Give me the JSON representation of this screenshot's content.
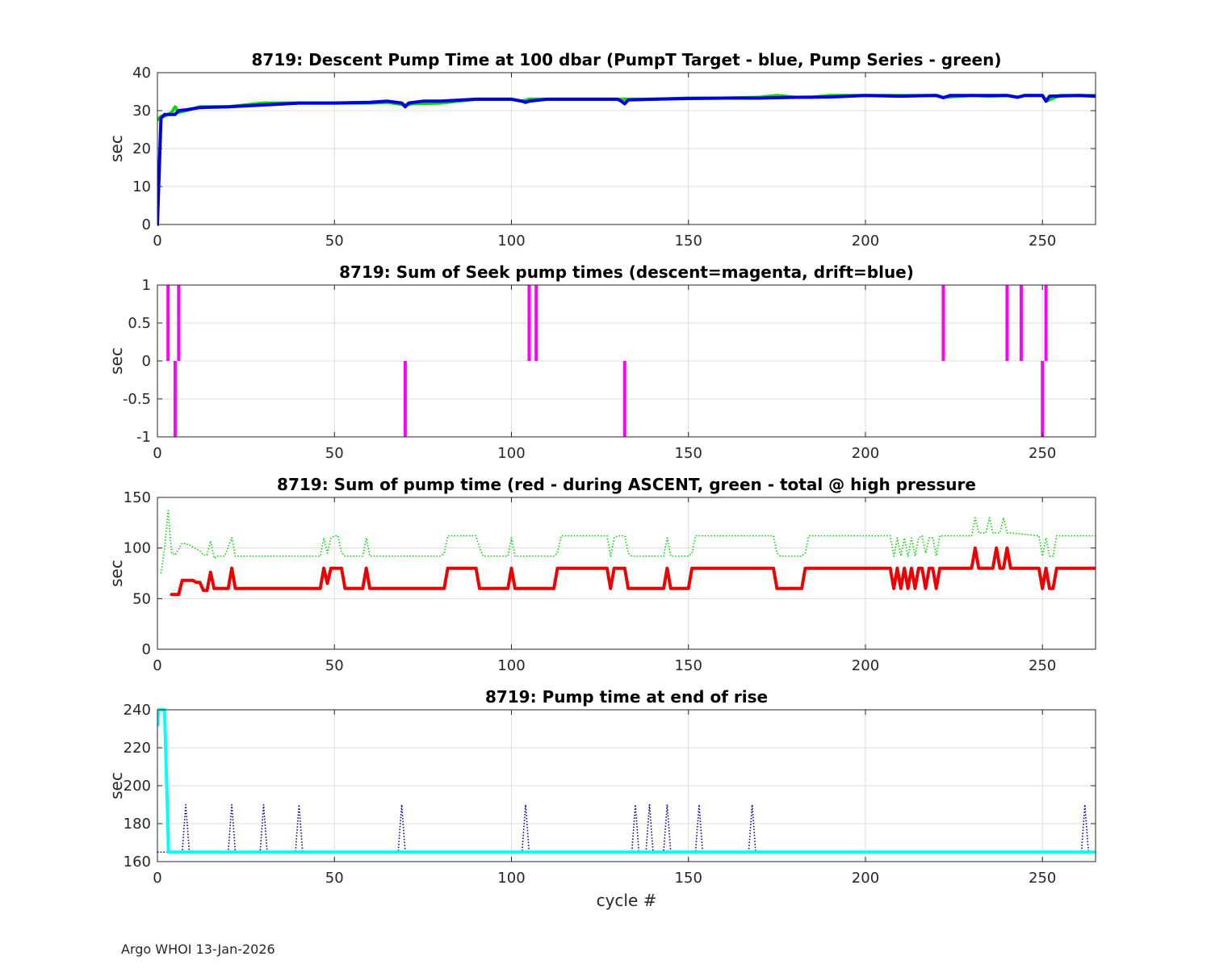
{
  "chart_data": [
    {
      "type": "line",
      "title": "8719: Descent Pump Time at 100 dbar (PumpT Target - blue, Pump Series - green)",
      "xlabel": "",
      "ylabel": "sec",
      "xlim": [
        0,
        265
      ],
      "ylim": [
        0,
        40
      ],
      "xticks": [
        "0",
        "50",
        "100",
        "150",
        "200",
        "250"
      ],
      "yticks": [
        "0",
        "10",
        "20",
        "30",
        "40"
      ],
      "grid": true,
      "series": [
        {
          "color": "#00dd00",
          "width": 4,
          "style": "solid",
          "x": [
            0,
            1,
            2,
            3,
            4,
            5,
            6,
            8,
            10,
            12,
            20,
            30,
            40,
            50,
            60,
            65,
            70,
            72,
            80,
            90,
            100,
            103,
            105,
            110,
            120,
            130,
            140,
            150,
            160,
            170,
            175,
            180,
            185,
            190,
            200,
            210,
            220,
            222,
            230,
            235,
            240,
            243,
            245,
            250,
            251,
            255,
            260,
            265
          ],
          "y": [
            27.5,
            28.5,
            28.5,
            29,
            29.5,
            31,
            29.5,
            30,
            30.5,
            31,
            31,
            32,
            32,
            32,
            32,
            32.2,
            31.5,
            31.8,
            32,
            33,
            33,
            32.5,
            33,
            33,
            33,
            33,
            33,
            33.3,
            33.3,
            33.5,
            34,
            33.5,
            33.5,
            34,
            34,
            34,
            34,
            33.5,
            34,
            33.8,
            34,
            33.5,
            34,
            34,
            32.5,
            34,
            34,
            34
          ]
        },
        {
          "color": "#0000dd",
          "width": 4,
          "style": "solid",
          "x": [
            0,
            1,
            2,
            3,
            5,
            6,
            8,
            12,
            20,
            30,
            40,
            50,
            60,
            65,
            69,
            70,
            71,
            75,
            80,
            90,
            100,
            103,
            104,
            105,
            110,
            120,
            130,
            131,
            132,
            133,
            140,
            150,
            160,
            170,
            180,
            190,
            200,
            210,
            220,
            222,
            224,
            230,
            240,
            243,
            245,
            250,
            251,
            252,
            260,
            265
          ],
          "y": [
            0,
            28,
            29,
            29,
            29,
            30,
            30.2,
            30.8,
            31,
            31.5,
            32,
            32,
            32.2,
            32.5,
            32,
            31,
            32,
            32.5,
            32.5,
            33,
            33,
            32.5,
            32.2,
            32.5,
            33,
            33,
            33,
            32.5,
            31.8,
            32.8,
            33,
            33.2,
            33.3,
            33.3,
            33.5,
            33.6,
            34,
            33.8,
            34,
            33.4,
            34,
            34,
            34,
            33.5,
            34,
            34,
            32.5,
            33.8,
            34,
            33.8
          ]
        }
      ]
    },
    {
      "type": "bar",
      "title": "8719: Sum of Seek pump times (descent=magenta, drift=blue)",
      "xlabel": "",
      "ylabel": "sec",
      "xlim": [
        0,
        265
      ],
      "ylim": [
        -1,
        1
      ],
      "xticks": [
        "0",
        "50",
        "100",
        "150",
        "200",
        "250"
      ],
      "yticks": [
        "-1",
        "-0.5",
        "0",
        "0.5",
        "1"
      ],
      "grid": true,
      "baseline": 0,
      "series": [
        {
          "color": "#ff00ff",
          "width": 4,
          "x": [
            3,
            5,
            6,
            70,
            105,
            107,
            132,
            222,
            240,
            244,
            250,
            251
          ],
          "y": [
            1,
            -1,
            1,
            -1,
            1,
            1,
            -1,
            1,
            1,
            1,
            -1,
            1
          ]
        }
      ]
    },
    {
      "type": "line",
      "title": "8719: Sum of pump time (red - during ASCENT, green - total @ high pressure",
      "xlabel": "",
      "ylabel": "sec",
      "xlim": [
        0,
        265
      ],
      "ylim": [
        0,
        150
      ],
      "xticks": [
        "0",
        "50",
        "100",
        "150",
        "200",
        "250"
      ],
      "yticks": [
        "0",
        "50",
        "100",
        "150"
      ],
      "grid": true,
      "series": [
        {
          "color": "#00dd00",
          "width": 1.6,
          "style": "dotted",
          "x": [
            1,
            2,
            3,
            4,
            5,
            7,
            9,
            11,
            12,
            13,
            14,
            15,
            16,
            17,
            19,
            21,
            22,
            23,
            30,
            40,
            46,
            47,
            48,
            49,
            50,
            51,
            52,
            53,
            58,
            59,
            60,
            61,
            70,
            80,
            81,
            82,
            90,
            91,
            92,
            99,
            100,
            101,
            102,
            112,
            113,
            114,
            127,
            128,
            129,
            130,
            132,
            133,
            134,
            143,
            144,
            145,
            150,
            151,
            152,
            160,
            170,
            174,
            175,
            176,
            182,
            183,
            184,
            200,
            207,
            208,
            209,
            210,
            211,
            212,
            213,
            214,
            215,
            216,
            217,
            218,
            219,
            220,
            221,
            230,
            231,
            232,
            234,
            235,
            236,
            238,
            239,
            240,
            241,
            249,
            250,
            251,
            252,
            253,
            254,
            255,
            265
          ],
          "y": [
            75,
            100,
            137,
            95,
            93,
            105,
            103,
            99,
            97,
            93,
            93,
            107,
            90,
            92,
            92,
            110,
            92,
            92,
            92,
            92,
            92,
            110,
            95,
            110,
            112,
            112,
            95,
            92,
            92,
            110,
            92,
            92,
            92,
            92,
            95,
            112,
            112,
            100,
            92,
            92,
            110,
            92,
            92,
            92,
            95,
            112,
            112,
            92,
            110,
            112,
            112,
            95,
            92,
            92,
            110,
            92,
            92,
            95,
            112,
            112,
            112,
            112,
            95,
            92,
            92,
            95,
            112,
            112,
            112,
            92,
            110,
            92,
            110,
            92,
            110,
            92,
            110,
            112,
            95,
            110,
            110,
            92,
            112,
            112,
            130,
            115,
            115,
            130,
            115,
            115,
            130,
            115,
            115,
            112,
            92,
            110,
            92,
            92,
            112,
            112,
            112
          ]
        },
        {
          "color": "#ee0000",
          "width": 4,
          "style": "solid",
          "x": [
            4,
            6,
            7,
            10,
            11,
            12,
            13,
            14,
            15,
            16,
            17,
            20,
            21,
            22,
            30,
            46,
            47,
            48,
            49,
            52,
            53,
            58,
            59,
            60,
            81,
            82,
            90,
            91,
            99,
            100,
            101,
            112,
            113,
            127,
            128,
            129,
            132,
            133,
            143,
            144,
            145,
            150,
            151,
            174,
            175,
            182,
            183,
            207,
            208,
            209,
            210,
            211,
            212,
            213,
            214,
            215,
            216,
            217,
            218,
            219,
            220,
            221,
            230,
            231,
            232,
            236,
            237,
            238,
            239,
            240,
            241,
            249,
            250,
            251,
            252,
            253,
            254,
            265
          ],
          "y": [
            54,
            54,
            68,
            68,
            66,
            66,
            58,
            58,
            76,
            60,
            60,
            60,
            80,
            60,
            60,
            60,
            80,
            65,
            80,
            80,
            60,
            60,
            80,
            60,
            60,
            80,
            80,
            60,
            60,
            80,
            60,
            60,
            80,
            80,
            60,
            80,
            80,
            60,
            60,
            80,
            60,
            60,
            80,
            80,
            60,
            60,
            80,
            80,
            60,
            80,
            60,
            80,
            60,
            80,
            60,
            80,
            80,
            60,
            80,
            80,
            60,
            80,
            80,
            100,
            80,
            80,
            100,
            80,
            80,
            100,
            80,
            80,
            60,
            80,
            60,
            60,
            80,
            80
          ]
        }
      ]
    },
    {
      "type": "line",
      "title": "8719: Pump time at end of rise",
      "xlabel": "cycle #",
      "ylabel": "sec",
      "xlim": [
        0,
        265
      ],
      "ylim": [
        160,
        240
      ],
      "xticks": [
        "0",
        "50",
        "100",
        "150",
        "200",
        "250"
      ],
      "yticks": [
        "160",
        "180",
        "200",
        "220",
        "240"
      ],
      "grid": true,
      "series": [
        {
          "color": "#000099",
          "width": 1.6,
          "style": "dotted",
          "x": [
            0,
            7,
            8,
            9,
            20,
            21,
            22,
            29,
            30,
            31,
            39,
            40,
            41,
            68,
            69,
            70,
            103,
            104,
            105,
            134,
            135,
            136,
            138,
            139,
            140,
            143,
            144,
            145,
            152,
            153,
            154,
            167,
            168,
            169,
            261,
            262,
            263,
            265
          ],
          "y": [
            165,
            165,
            190,
            165,
            165,
            190,
            165,
            165,
            190,
            165,
            165,
            190,
            165,
            165,
            190,
            165,
            165,
            190,
            165,
            165,
            190,
            165,
            165,
            190,
            165,
            165,
            190,
            165,
            165,
            190,
            165,
            165,
            190,
            165,
            165,
            190,
            165,
            165
          ]
        },
        {
          "color": "#00ffff",
          "width": 4,
          "style": "solid",
          "x": [
            0,
            0.3,
            2,
            3,
            3.1,
            265
          ],
          "y": [
            232,
            240,
            240,
            175,
            165,
            165
          ]
        }
      ]
    }
  ],
  "footer": "Argo WHOI 13-Jan-2026"
}
